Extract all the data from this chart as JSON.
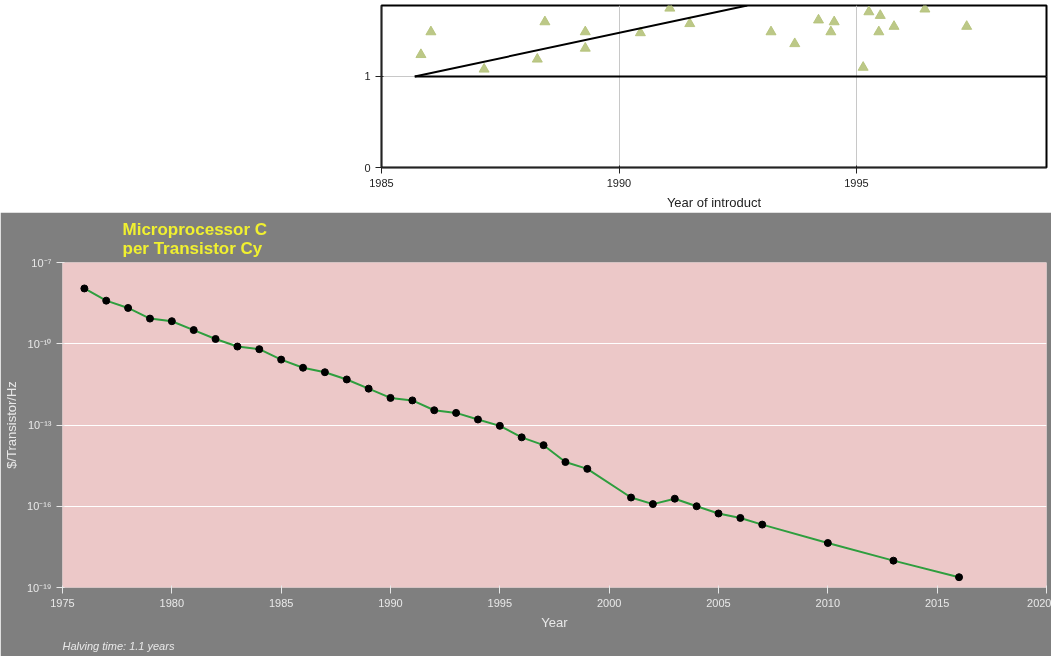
{
  "chart_data": [
    {
      "type": "line",
      "title": "Microprocessor C\nper Transistor Cy",
      "xlabel": "Year",
      "ylabel": "$/Transistor/Hz",
      "annotations": [
        "Halving time: 1.1 years"
      ],
      "x": [
        1976,
        1977,
        1978,
        1979,
        1980,
        1981,
        1982,
        1983,
        1984,
        1985,
        1986,
        1987,
        1988,
        1989,
        1990,
        1991,
        1992,
        1993,
        1994,
        1995,
        1996,
        1997,
        1998,
        1999,
        2001,
        2002,
        2003,
        2004,
        2005,
        2006,
        2007,
        2010,
        2013,
        2016
      ],
      "series": [
        {
          "color": "#2e9e3e",
          "values": [
            1.1e-08,
            3.9e-09,
            2.1e-09,
            8.5e-10,
            6.8e-10,
            3.2e-10,
            1.5e-10,
            7.9e-11,
            6.3e-11,
            2.6e-11,
            1.3e-11,
            8.9e-12,
            4.8e-12,
            2.2e-12,
            1e-12,
            8.1e-13,
            3.5e-13,
            2.8e-13,
            1.6e-13,
            9.3e-14,
            3.5e-14,
            1.8e-14,
            4.3e-15,
            2.4e-15,
            2.1e-16,
            1.2e-16,
            1.9e-16,
            1e-16,
            5.4e-17,
            3.7e-17,
            2.1e-17,
            4.4e-18,
            9.8e-19,
            2.4e-19
          ]
        }
      ],
      "log": "y",
      "marker": "circle",
      "grid": "y",
      "xlim": [
        1975,
        2020
      ],
      "xticks": [
        1975,
        1980,
        1985,
        1990,
        1995,
        2000,
        2005,
        2010,
        2015,
        2020
      ],
      "ylim": [
        1e-19,
        1e-07
      ],
      "yticks": [
        {
          "value": 1e-19,
          "label": "10⁻¹⁹"
        },
        {
          "value": 1e-16,
          "label": "10⁻¹⁶"
        },
        {
          "value": 1e-13,
          "label": "10⁻¹³"
        },
        {
          "value": 1e-10,
          "label": "10⁻¹⁰"
        },
        {
          "value": 1e-07,
          "label": "10⁻⁷"
        }
      ]
    },
    {
      "type": "scatter",
      "xlabel": "Year of introduct",
      "grid": true,
      "series": [
        {
          "type": "scatter",
          "marker": "triangle",
          "color": "#b5c27a",
          "x": [
            1985.83,
            1986.04,
            1987.16,
            1988.28,
            1988.44,
            1989.29,
            1989.29,
            1990.45,
            1991.07,
            1991.49,
            1993.2,
            1993.7,
            1994.2,
            1994.46,
            1994.53,
            1995.14,
            1995.26,
            1995.47,
            1995.5,
            1995.79,
            1996.44,
            1997.32
          ],
          "values": [
            1.24,
            1.49,
            1.08,
            1.19,
            1.6,
            1.31,
            1.49,
            1.48,
            1.75,
            1.58,
            1.49,
            1.36,
            1.62,
            1.49,
            1.6,
            1.1,
            1.71,
            1.49,
            1.67,
            1.55,
            1.74,
            1.55
          ]
        },
        {
          "type": "line",
          "color": "#000000",
          "x": [
            1985.7,
            1992.7
          ],
          "values": [
            1.0,
            1.78
          ]
        },
        {
          "type": "line",
          "color": "#000000",
          "x": [
            1985.7,
            1999
          ],
          "values": [
            1.0,
            1.0
          ]
        }
      ],
      "xlim": [
        1985,
        1999
      ],
      "xticks": [
        1985,
        1990,
        1995
      ],
      "ylim": [
        0,
        1.78
      ],
      "yticks": [
        0,
        1
      ]
    }
  ]
}
